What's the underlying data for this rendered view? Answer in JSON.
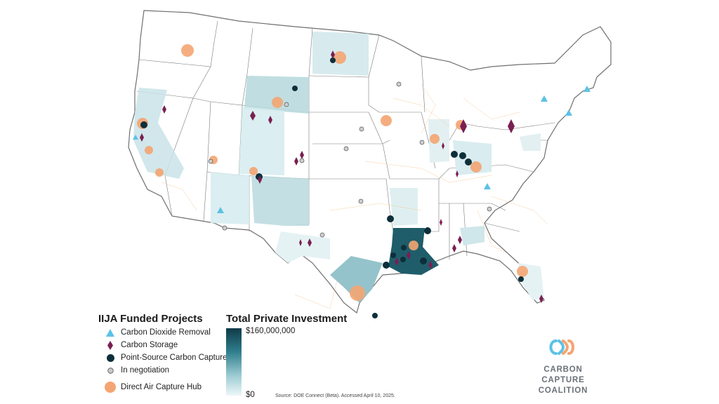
{
  "legend": {
    "title": "IIJA Funded Projects",
    "items": [
      {
        "label": "Carbon Dioxide Removal",
        "icon": "triangle-icon",
        "color": "#5bc2e7"
      },
      {
        "label": "Carbon Storage",
        "icon": "diamond-icon",
        "color": "#7a1f52"
      },
      {
        "label": "Point-Source Carbon Capture",
        "icon": "dark-circle-icon",
        "color": "#0d2f3a"
      },
      {
        "label": "In negotiation",
        "icon": "gray-circle-icon",
        "color": "#c8c8c8"
      },
      {
        "label": "Direct Air Capture Hub",
        "icon": "orange-circle-icon",
        "color": "#f4a572"
      }
    ]
  },
  "investment_scale": {
    "title": "Total Private Investment",
    "max_label": "$160,000,000",
    "min_label": "$0",
    "color_high": "#0f3a48",
    "color_low": "#eef7f8"
  },
  "source": "Source: DOE Connect (Beta). Accessed April 10, 2025.",
  "logo": {
    "line1": "CARBON CAPTURE",
    "line2": "COALITION",
    "colors": [
      "#5bc2e7",
      "#f4a572"
    ]
  }
}
